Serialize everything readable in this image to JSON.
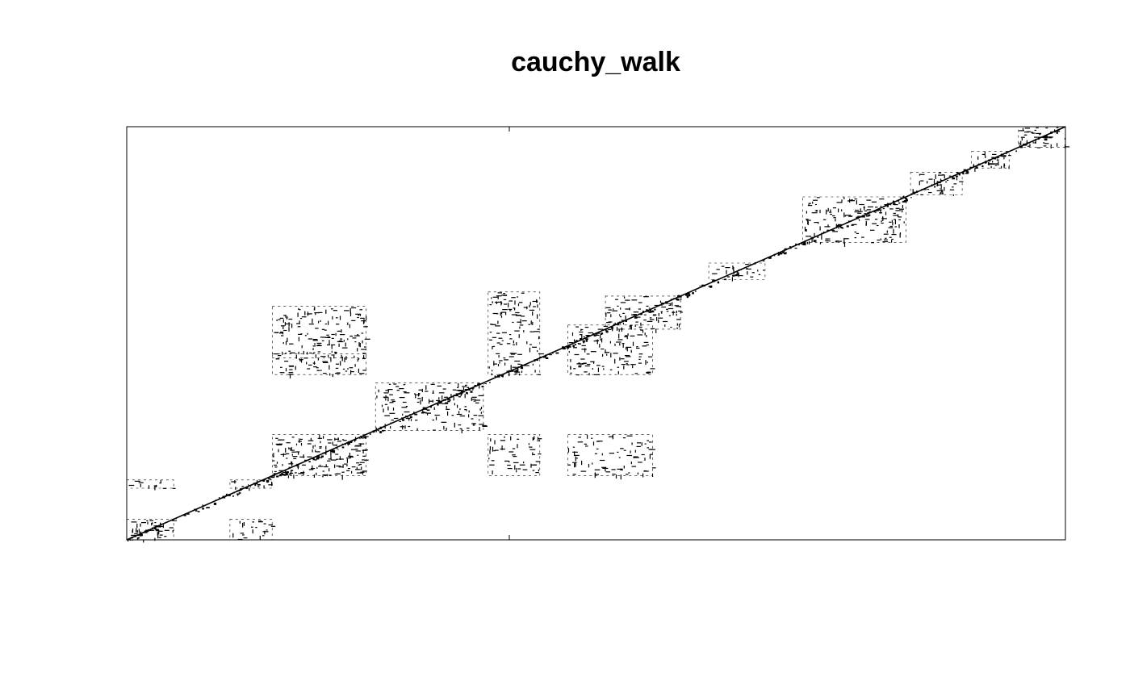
{
  "chart_data": {
    "type": "recurrence_plot",
    "title": "cauchy_walk",
    "xlabel": "",
    "ylabel": "",
    "axes_ticks_visible": false,
    "grid": false,
    "legend": "none",
    "series_name": "cauchy_walk",
    "point_color": "#000000",
    "recurrence_blocks": [
      {
        "x": [
          0.0,
          0.05
        ],
        "y": [
          0.0,
          0.05
        ],
        "density": 0.85
      },
      {
        "x": [
          0.0,
          0.05
        ],
        "y": [
          0.125,
          0.145
        ],
        "density": 0.55
      },
      {
        "x": [
          0.11,
          0.155
        ],
        "y": [
          0.0,
          0.05
        ],
        "density": 0.45
      },
      {
        "x": [
          0.11,
          0.155
        ],
        "y": [
          0.125,
          0.145
        ],
        "density": 0.7
      },
      {
        "x": [
          0.155,
          0.255
        ],
        "y": [
          0.155,
          0.255
        ],
        "density": 0.8
      },
      {
        "x": [
          0.155,
          0.255
        ],
        "y": [
          0.4,
          0.45
        ],
        "density": 0.55
      },
      {
        "x": [
          0.155,
          0.255
        ],
        "y": [
          0.44,
          0.565
        ],
        "density": 0.6
      },
      {
        "x": [
          0.265,
          0.38
        ],
        "y": [
          0.265,
          0.38
        ],
        "density": 0.55
      },
      {
        "x": [
          0.385,
          0.44
        ],
        "y": [
          0.155,
          0.255
        ],
        "density": 0.45
      },
      {
        "x": [
          0.385,
          0.44
        ],
        "y": [
          0.4,
          0.6
        ],
        "density": 0.55
      },
      {
        "x": [
          0.47,
          0.56
        ],
        "y": [
          0.155,
          0.255
        ],
        "density": 0.45
      },
      {
        "x": [
          0.47,
          0.56
        ],
        "y": [
          0.4,
          0.52
        ],
        "density": 0.55
      },
      {
        "x": [
          0.51,
          0.59
        ],
        "y": [
          0.51,
          0.59
        ],
        "density": 0.65
      },
      {
        "x": [
          0.62,
          0.68
        ],
        "y": [
          0.63,
          0.67
        ],
        "density": 0.4
      },
      {
        "x": [
          0.72,
          0.83
        ],
        "y": [
          0.72,
          0.83
        ],
        "density": 0.6
      },
      {
        "x": [
          0.835,
          0.89
        ],
        "y": [
          0.835,
          0.89
        ],
        "density": 0.6
      },
      {
        "x": [
          0.9,
          0.94
        ],
        "y": [
          0.9,
          0.94
        ],
        "density": 0.7
      },
      {
        "x": [
          0.95,
          1.0
        ],
        "y": [
          0.95,
          1.0
        ],
        "density": 0.75
      }
    ]
  }
}
